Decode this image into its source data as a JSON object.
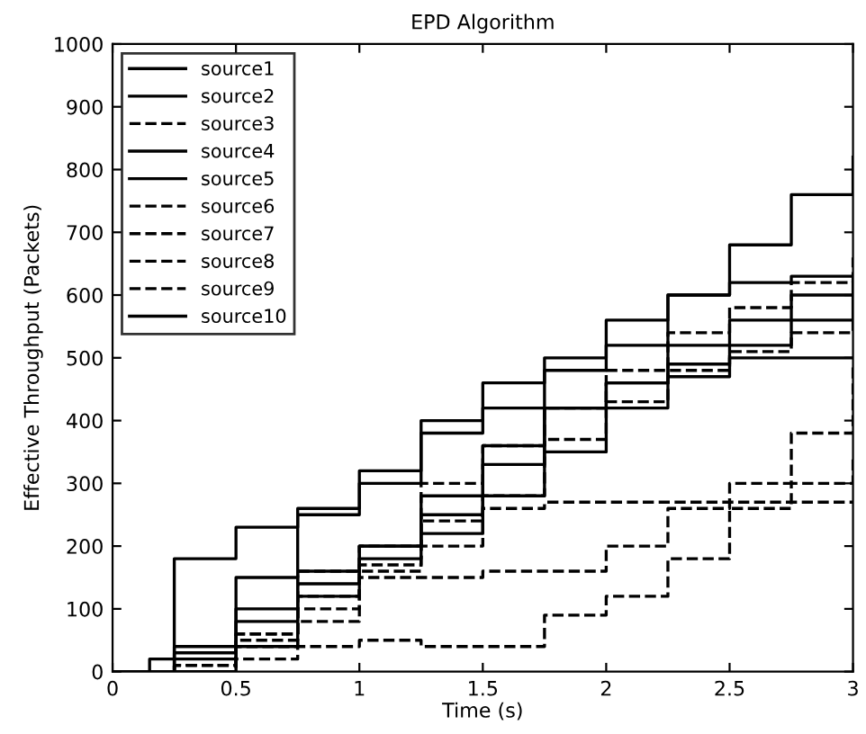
{
  "chart_data": {
    "type": "step",
    "title": "EPD Algorithm",
    "xlabel": "Time (s)",
    "ylabel": "Effective Throughput (Packets)",
    "x": [
      0,
      0.15,
      0.25,
      0.5,
      0.75,
      1,
      1.25,
      1.5,
      1.75,
      2,
      2.25,
      2.5,
      2.75,
      3
    ],
    "xlim": [
      0,
      3
    ],
    "xticks": [
      0,
      0.5,
      1,
      1.5,
      2,
      2.5,
      3
    ],
    "ylim": [
      0,
      1000
    ],
    "yticks": [
      0,
      100,
      200,
      300,
      400,
      500,
      600,
      700,
      800,
      900,
      1000
    ],
    "grid": false,
    "legend": "top left",
    "series": [
      {
        "name": "source1",
        "color": "#000000",
        "line_style": "solid",
        "values": [
          0,
          20,
          180,
          230,
          260,
          300,
          380,
          420,
          480,
          520,
          600,
          680,
          760,
          820
        ]
      },
      {
        "name": "source2",
        "color": "#000000",
        "line_style": "solid",
        "values": [
          0,
          0,
          20,
          150,
          250,
          320,
          400,
          460,
          500,
          560,
          600,
          620,
          630,
          630
        ]
      },
      {
        "name": "source3",
        "color": "#000000",
        "line_style": "dashed",
        "values": [
          0,
          0,
          10,
          60,
          160,
          200,
          300,
          360,
          420,
          480,
          540,
          580,
          620,
          660
        ]
      },
      {
        "name": "source4",
        "color": "#000000",
        "line_style": "solid",
        "values": [
          0,
          0,
          0,
          40,
          120,
          200,
          280,
          360,
          420,
          460,
          490,
          500,
          500,
          500
        ]
      },
      {
        "name": "source5",
        "color": "#000000",
        "line_style": "solid",
        "values": [
          0,
          0,
          30,
          80,
          140,
          200,
          250,
          330,
          420,
          460,
          520,
          560,
          600,
          620
        ]
      },
      {
        "name": "source6",
        "color": "#000000",
        "line_style": "dashed",
        "values": [
          0,
          0,
          10,
          50,
          80,
          170,
          240,
          260,
          270,
          270,
          270,
          270,
          270,
          270
        ]
      },
      {
        "name": "source7",
        "color": "#000000",
        "line_style": "dashed",
        "values": [
          0,
          0,
          0,
          20,
          40,
          50,
          40,
          40,
          90,
          120,
          180,
          260,
          300,
          340
        ]
      },
      {
        "name": "source8",
        "color": "#000000",
        "line_style": "dashed",
        "values": [
          0,
          0,
          10,
          60,
          120,
          160,
          200,
          280,
          370,
          430,
          480,
          510,
          540,
          560
        ]
      },
      {
        "name": "source9",
        "color": "#000000",
        "line_style": "dashed",
        "values": [
          0,
          0,
          0,
          40,
          100,
          150,
          150,
          160,
          160,
          200,
          260,
          300,
          380,
          490
        ]
      },
      {
        "name": "source10",
        "color": "#000000",
        "line_style": "solid",
        "values": [
          0,
          0,
          40,
          100,
          160,
          180,
          220,
          280,
          350,
          420,
          470,
          520,
          560,
          600
        ]
      }
    ]
  }
}
